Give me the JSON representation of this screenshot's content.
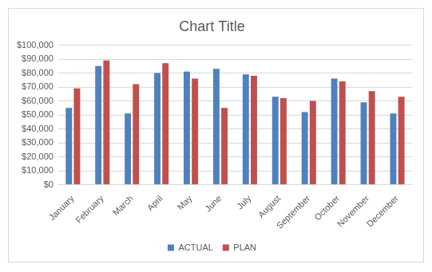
{
  "chart_data": {
    "type": "bar",
    "title": "Chart Title",
    "categories": [
      "January",
      "February",
      "March",
      "April",
      "May",
      "June",
      "July",
      "August",
      "September",
      "October",
      "November",
      "December"
    ],
    "series": [
      {
        "name": "ACTUAL",
        "color": "#4f81bd",
        "values": [
          55000,
          85000,
          51000,
          80000,
          81000,
          83000,
          79000,
          63000,
          52000,
          76000,
          59000,
          51000
        ]
      },
      {
        "name": "PLAN",
        "color": "#c0504d",
        "values": [
          69000,
          89000,
          72000,
          87000,
          76000,
          55000,
          78000,
          62000,
          60000,
          74000,
          67000,
          63000
        ]
      }
    ],
    "ylim": [
      0,
      100000
    ],
    "yticks": [
      {
        "value": 0,
        "label": "$0"
      },
      {
        "value": 10000,
        "label": "$10,000"
      },
      {
        "value": 20000,
        "label": "$20,000"
      },
      {
        "value": 30000,
        "label": "$30,000"
      },
      {
        "value": 40000,
        "label": "$40,000"
      },
      {
        "value": 50000,
        "label": "$50,000"
      },
      {
        "value": 60000,
        "label": "$60,000"
      },
      {
        "value": 70000,
        "label": "$70,000"
      },
      {
        "value": 80000,
        "label": "$80,000"
      },
      {
        "value": 90000,
        "label": "$90,000"
      },
      {
        "value": 100000,
        "label": "$100,000"
      }
    ],
    "grid": true,
    "legend": "bottom"
  }
}
